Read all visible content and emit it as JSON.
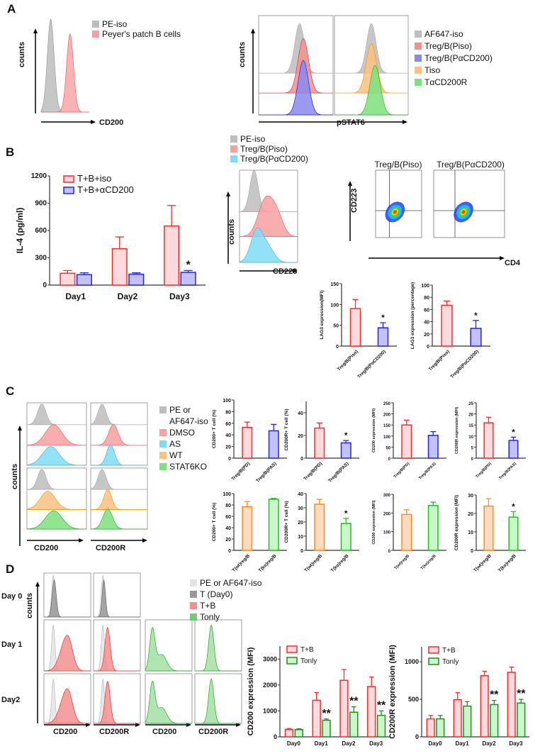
{
  "colors": {
    "red": "#ff2a2a",
    "red_fill": "#ffdadd",
    "blue": "#2424ee",
    "blue_fill": "#c2c2f8",
    "orange": "#ff8c1a",
    "orange_fill": "#ffdcc0",
    "green": "#22c022",
    "green_fill": "#c8f7c8",
    "dgreen": "#1f8f1f",
    "dgreen_fill": "#ccf5cc",
    "grey": "#bdbdbd",
    "cyan": "#7fdcf5",
    "dgrey": "#8a8a8a"
  },
  "panels": {
    "a": "A",
    "b": "B",
    "c": "C",
    "d": "D"
  },
  "panelA": {
    "counts": "counts",
    "xlabel_left": "CD200",
    "xlabel_right": "pSTAT6",
    "legend_left": [
      "PE-iso",
      "Peyer's patch B cells"
    ],
    "legend_right": [
      "AF647-iso",
      "Treg/B(Piso)",
      "Treg/B(PαCD200)",
      "Tiso",
      "TαCD200R"
    ]
  },
  "panelB": {
    "counts": "counts",
    "hist_xlabel": "CD223",
    "hist_legend": [
      "PE-iso",
      "Treg/B(Piso)",
      "Treg/B(PαCD200)"
    ],
    "scatter_titles": [
      "Treg/B(Piso)",
      "Treg/B(PαCD200)"
    ],
    "scatter_ylabel": "CD223",
    "scatter_xlabel": "CD4"
  },
  "panelC": {
    "counts": "counts",
    "xlabels": [
      "CD200",
      "CD200R"
    ],
    "legend": [
      "PE or",
      "AF647-iso",
      "DMSO",
      "AS",
      "WT",
      "STAT6KO"
    ]
  },
  "panelD": {
    "counts": "counts",
    "rows": [
      "Day 0",
      "Day 1",
      "Day2"
    ],
    "xlabels": [
      "CD200",
      "CD200R",
      "CD200",
      "CD200R"
    ],
    "legend": [
      "PE or AF647-iso",
      "T (Day0)",
      "T+B",
      "Tonly"
    ]
  },
  "chart_data": [
    {
      "id": "il4",
      "type": "bar",
      "title": "",
      "ylabel": "IL-4 (pg/ml)",
      "xlabel": "",
      "categories": [
        "Day1",
        "Day2",
        "Day3"
      ],
      "ylim": [
        0,
        1200
      ],
      "ytick": 300,
      "legend": "top-left",
      "series": [
        {
          "name": "T+B+iso",
          "values": [
            130,
            400,
            650
          ],
          "errors": [
            30,
            130,
            225
          ],
          "color": "red",
          "sig": [
            "",
            "",
            ""
          ]
        },
        {
          "name": "T+B+αCD200",
          "values": [
            115,
            120,
            140
          ],
          "errors": [
            20,
            15,
            20
          ],
          "color": "blue",
          "sig": [
            "",
            "",
            "*"
          ]
        }
      ]
    },
    {
      "id": "lag3mfi",
      "type": "bar",
      "ylabel": "LAG3 expression(MFI)",
      "categories": [
        "Treg/B(Piso)",
        "Treg/B(PαCD200)"
      ],
      "ylim": [
        0,
        150
      ],
      "ytick": 50,
      "bar_colors": [
        "red",
        "blue"
      ],
      "values": [
        90,
        44
      ],
      "errors": [
        22,
        12
      ],
      "sig": [
        "",
        "*"
      ]
    },
    {
      "id": "lag3pct",
      "type": "bar",
      "ylabel": "LAG3 expression (percentage)",
      "categories": [
        "Treg/B(Piso)",
        "Treg/B(PαCD200)"
      ],
      "ylim": [
        0,
        100
      ],
      "ytick": 20,
      "bar_colors": [
        "red",
        "blue"
      ],
      "values": [
        67,
        29
      ],
      "errors": [
        7,
        13
      ],
      "sig": [
        "",
        "*"
      ]
    },
    {
      "id": "c1",
      "type": "bar",
      "ylabel": "CD200+ T cell (%)",
      "categories": [
        "Treg/B(PD)",
        "Treg/B(PAS)"
      ],
      "ylim": [
        0,
        100
      ],
      "ytick": 20,
      "bar_colors": [
        "red",
        "blue"
      ],
      "values": [
        53,
        47
      ],
      "errors": [
        9,
        11
      ],
      "sig": [
        "",
        ""
      ]
    },
    {
      "id": "c2",
      "type": "bar",
      "ylabel": "CD200R+ T cell (%)",
      "categories": [
        "Treg/B(PD)",
        "Treg/B(PAS)"
      ],
      "ylim": [
        0,
        50
      ],
      "ytick": 20,
      "bar_colors": [
        "red",
        "blue"
      ],
      "values": [
        26.5,
        13.5
      ],
      "errors": [
        4.5,
        2
      ],
      "sig": [
        "",
        "*"
      ]
    },
    {
      "id": "c3",
      "type": "bar",
      "ylabel": "CD200 expression (MFI)",
      "categories": [
        "Treg/B(PD)",
        "Treg/B(PAS)"
      ],
      "ylim": [
        0,
        250
      ],
      "ytick": 50,
      "bar_colors": [
        "red",
        "blue"
      ],
      "values": [
        150,
        103
      ],
      "errors": [
        22,
        17
      ],
      "sig": [
        "",
        ""
      ]
    },
    {
      "id": "c4",
      "type": "bar",
      "ylabel": "CD200R expression (MFI)",
      "categories": [
        "Treg/B(PD)",
        "Treg/B(PAS)"
      ],
      "ylim": [
        0,
        25
      ],
      "ytick": 5,
      "bar_colors": [
        "red",
        "blue"
      ],
      "values": [
        16,
        8
      ],
      "errors": [
        2.5,
        1.5
      ],
      "sig": [
        "",
        "*"
      ]
    },
    {
      "id": "c5",
      "type": "bar",
      "ylabel": "CD200+ T cell (%)",
      "categories": [
        "T(wt)reg/B",
        "T(ko)reg/B"
      ],
      "ylim": [
        0,
        100
      ],
      "ytick": 20,
      "bar_colors": [
        "orange",
        "green"
      ],
      "values": [
        77,
        90
      ],
      "errors": [
        9,
        1.5
      ],
      "sig": [
        "",
        ""
      ]
    },
    {
      "id": "c6",
      "type": "bar",
      "ylabel": "CD200R+ T cell (%)",
      "categories": [
        "T(wt)reg/B",
        "T(ko)reg/B"
      ],
      "ylim": [
        0,
        40
      ],
      "ytick": 10,
      "bar_colors": [
        "orange",
        "green"
      ],
      "values": [
        32.5,
        19
      ],
      "errors": [
        3.5,
        3.5
      ],
      "sig": [
        "",
        "*"
      ]
    },
    {
      "id": "c7",
      "type": "bar",
      "ylabel": "CD200 expression (MFI)",
      "categories": [
        "T(wt)reg/B",
        "T(ko)reg/B"
      ],
      "ylim": [
        0,
        300
      ],
      "ytick": 100,
      "bar_colors": [
        "orange",
        "green"
      ],
      "values": [
        192,
        240
      ],
      "errors": [
        25,
        18
      ],
      "sig": [
        "",
        ""
      ]
    },
    {
      "id": "c8",
      "type": "bar",
      "ylabel": "CD200R expression (MFI)",
      "categories": [
        "T(wt)reg/B",
        "T(ko)reg/B"
      ],
      "ylim": [
        0,
        30
      ],
      "ytick": 10,
      "bar_colors": [
        "orange",
        "green"
      ],
      "values": [
        24,
        18
      ],
      "errors": [
        4,
        3
      ],
      "sig": [
        "",
        "*"
      ]
    },
    {
      "id": "d1",
      "type": "bar",
      "ylabel": "CD200 expression (MFI)",
      "categories": [
        "Day0",
        "Day1",
        "Day2",
        "Day3"
      ],
      "ylim": [
        0,
        3500
      ],
      "ytick": 1000,
      "legend": "top-left",
      "series": [
        {
          "name": "T+B",
          "values": [
            290,
            1410,
            2180,
            1940
          ],
          "errors": [
            30,
            300,
            420,
            370
          ],
          "color": "red",
          "sig": [
            "",
            "",
            "",
            ""
          ]
        },
        {
          "name": "Tonly",
          "values": [
            280,
            640,
            950,
            830
          ],
          "errors": [
            30,
            50,
            210,
            170
          ],
          "color": "dgreen",
          "sig": [
            "",
            "**",
            "**",
            "**"
          ]
        }
      ]
    },
    {
      "id": "d2",
      "type": "bar",
      "ylabel": "CD200R expression (MFI)",
      "categories": [
        "Day0",
        "Day1",
        "Day2",
        "Day3"
      ],
      "ylim": [
        0,
        1200
      ],
      "ytick": 500,
      "legend": "top-left",
      "series": [
        {
          "name": "T+B",
          "values": [
            240,
            495,
            815,
            860
          ],
          "errors": [
            45,
            95,
            60,
            70
          ],
          "color": "red",
          "sig": [
            "",
            "",
            "",
            ""
          ]
        },
        {
          "name": "Tonly",
          "values": [
            240,
            410,
            430,
            450
          ],
          "errors": [
            45,
            60,
            55,
            50
          ],
          "color": "dgreen",
          "sig": [
            "",
            "",
            "**",
            "**"
          ]
        }
      ]
    }
  ]
}
